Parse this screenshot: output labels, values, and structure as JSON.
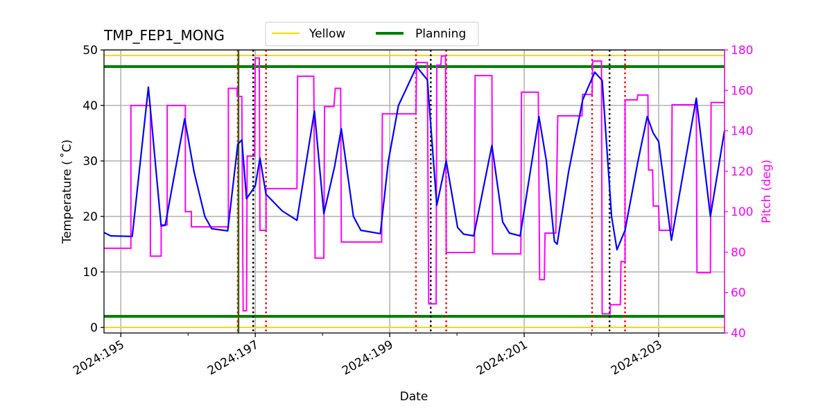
{
  "chart_data": {
    "type": "line",
    "title": "TMP_FEP1_MONG",
    "xlabel": "Date",
    "ylabel": "Temperature ($^\\circ$C)",
    "ylabel_display": "Temperature ( ˚C)",
    "y2label": "Pitch (deg)",
    "xlim": [
      194.75,
      203.98
    ],
    "ylim": [
      -1,
      50
    ],
    "y2lim": [
      40,
      180
    ],
    "grid": true,
    "legend_placement": "top-center",
    "x_tick_labels": [
      {
        "value": 195,
        "label": "2024:195"
      },
      {
        "value": 197,
        "label": "2024:197"
      },
      {
        "value": 199,
        "label": "2024:199"
      },
      {
        "value": 201,
        "label": "2024:201"
      },
      {
        "value": 203,
        "label": "2024:203"
      }
    ],
    "x_minor_ticks": [
      196,
      198,
      200,
      202
    ],
    "y_ticks": [
      0,
      10,
      20,
      30,
      40,
      50
    ],
    "y2_ticks": [
      40,
      60,
      80,
      100,
      120,
      140,
      160,
      180
    ],
    "colors": {
      "temperature": "#0000ff",
      "pitch": "#ff00ff",
      "yellow": "#ffd700",
      "planning": "#008000",
      "red_marker": "#ff0000",
      "black_marker": "#000000",
      "y2axis": "#ff00ff"
    },
    "legend": [
      {
        "name": "Yellow",
        "color": "#ffd700"
      },
      {
        "name": "Planning",
        "color": "#008000"
      }
    ],
    "limit_lines": [
      {
        "name": "Yellow",
        "values": [
          49,
          0
        ]
      },
      {
        "name": "Planning",
        "values": [
          47,
          2
        ]
      }
    ],
    "vertical_markers": {
      "red_dotted": [
        196.74,
        197.16,
        199.39,
        199.84,
        202.01,
        202.5
      ],
      "black_dotted": [
        196.97,
        199.61,
        202.27
      ],
      "green_solid": [
        196.75
      ]
    },
    "temperature": [
      [
        194.75,
        17.1
      ],
      [
        194.85,
        16.5
      ],
      [
        195.17,
        16.4
      ],
      [
        195.41,
        43.3
      ],
      [
        195.6,
        18.3
      ],
      [
        195.66,
        18.4
      ],
      [
        195.95,
        37.6
      ],
      [
        196.09,
        28
      ],
      [
        196.25,
        20
      ],
      [
        196.35,
        17.8
      ],
      [
        196.59,
        17.4
      ],
      [
        196.74,
        33
      ],
      [
        196.8,
        33.8
      ],
      [
        196.87,
        23.2
      ],
      [
        197.0,
        25.5
      ],
      [
        197.07,
        30.5
      ],
      [
        197.16,
        24
      ],
      [
        197.4,
        21
      ],
      [
        197.62,
        19.3
      ],
      [
        197.88,
        39
      ],
      [
        198.02,
        20.5
      ],
      [
        198.18,
        29
      ],
      [
        198.28,
        35.8
      ],
      [
        198.46,
        20
      ],
      [
        198.57,
        17.5
      ],
      [
        198.86,
        16.9
      ],
      [
        198.98,
        30
      ],
      [
        199.13,
        40
      ],
      [
        199.4,
        47
      ],
      [
        199.56,
        44.6
      ],
      [
        199.7,
        22
      ],
      [
        199.84,
        30
      ],
      [
        200.01,
        18
      ],
      [
        200.1,
        16.8
      ],
      [
        200.25,
        16.5
      ],
      [
        200.52,
        32.8
      ],
      [
        200.68,
        19
      ],
      [
        200.78,
        17
      ],
      [
        200.94,
        16.5
      ],
      [
        201.22,
        38
      ],
      [
        201.33,
        30
      ],
      [
        201.45,
        15.5
      ],
      [
        201.49,
        15
      ],
      [
        201.66,
        28
      ],
      [
        201.87,
        41
      ],
      [
        202.05,
        46
      ],
      [
        202.16,
        44.5
      ],
      [
        202.3,
        20
      ],
      [
        202.38,
        14
      ],
      [
        202.5,
        17.5
      ],
      [
        202.69,
        29.8
      ],
      [
        202.83,
        38
      ],
      [
        202.92,
        35
      ],
      [
        203.0,
        33.5
      ],
      [
        203.19,
        15.7
      ],
      [
        203.56,
        41.3
      ],
      [
        203.77,
        20
      ],
      [
        203.98,
        35.5
      ]
    ],
    "pitch": [
      [
        194.75,
        81.9
      ],
      [
        195.15,
        81.9
      ],
      [
        195.15,
        152.5
      ],
      [
        195.44,
        152.5
      ],
      [
        195.44,
        78
      ],
      [
        195.6,
        78
      ],
      [
        195.6,
        93.5
      ],
      [
        195.69,
        93.5
      ],
      [
        195.69,
        152.5
      ],
      [
        195.96,
        152.5
      ],
      [
        195.96,
        100
      ],
      [
        196.05,
        100
      ],
      [
        196.05,
        92.5
      ],
      [
        196.6,
        92.5
      ],
      [
        196.6,
        161
      ],
      [
        196.73,
        161
      ],
      [
        196.73,
        157
      ],
      [
        196.8,
        157
      ],
      [
        196.82,
        51
      ],
      [
        196.87,
        51
      ],
      [
        196.88,
        127.5
      ],
      [
        196.99,
        127.5
      ],
      [
        197.0,
        176
      ],
      [
        197.06,
        176
      ],
      [
        197.07,
        90.8
      ],
      [
        197.16,
        90.8
      ],
      [
        197.16,
        111.4
      ],
      [
        197.62,
        111.4
      ],
      [
        197.63,
        167
      ],
      [
        197.87,
        167
      ],
      [
        197.89,
        77
      ],
      [
        198.02,
        77
      ],
      [
        198.03,
        152
      ],
      [
        198.17,
        152
      ],
      [
        198.19,
        161
      ],
      [
        198.27,
        161
      ],
      [
        198.28,
        85
      ],
      [
        198.88,
        85
      ],
      [
        198.89,
        148.4
      ],
      [
        199.39,
        148.4
      ],
      [
        199.4,
        173.8
      ],
      [
        199.56,
        173.8
      ],
      [
        199.58,
        54.4
      ],
      [
        199.69,
        54.4
      ],
      [
        199.7,
        172.5
      ],
      [
        199.76,
        172.5
      ],
      [
        199.77,
        177
      ],
      [
        199.83,
        177
      ],
      [
        199.84,
        79.8
      ],
      [
        200.26,
        79.8
      ],
      [
        200.27,
        167.3
      ],
      [
        200.52,
        167.3
      ],
      [
        200.53,
        79.1
      ],
      [
        200.95,
        79.1
      ],
      [
        200.96,
        159.1
      ],
      [
        201.21,
        159.1
      ],
      [
        201.23,
        66.4
      ],
      [
        201.3,
        66.4
      ],
      [
        201.31,
        89.4
      ],
      [
        201.47,
        89.4
      ],
      [
        201.5,
        147.4
      ],
      [
        201.86,
        147.4
      ],
      [
        201.87,
        158
      ],
      [
        202.01,
        158
      ],
      [
        202.02,
        174.5
      ],
      [
        202.15,
        174.5
      ],
      [
        202.16,
        49.5
      ],
      [
        202.28,
        49.5
      ],
      [
        202.28,
        54
      ],
      [
        202.43,
        54
      ],
      [
        202.44,
        75.3
      ],
      [
        202.5,
        75.3
      ],
      [
        202.5,
        155.3
      ],
      [
        202.68,
        155.3
      ],
      [
        202.69,
        157.7
      ],
      [
        202.84,
        157.7
      ],
      [
        202.85,
        120.6
      ],
      [
        202.91,
        120.6
      ],
      [
        202.92,
        102.8
      ],
      [
        203.0,
        102.8
      ],
      [
        203.01,
        90.8
      ],
      [
        203.19,
        90.8
      ],
      [
        203.2,
        152.9
      ],
      [
        203.56,
        152.9
      ],
      [
        203.57,
        69.8
      ],
      [
        203.77,
        69.8
      ],
      [
        203.78,
        154
      ],
      [
        203.98,
        154
      ]
    ]
  }
}
